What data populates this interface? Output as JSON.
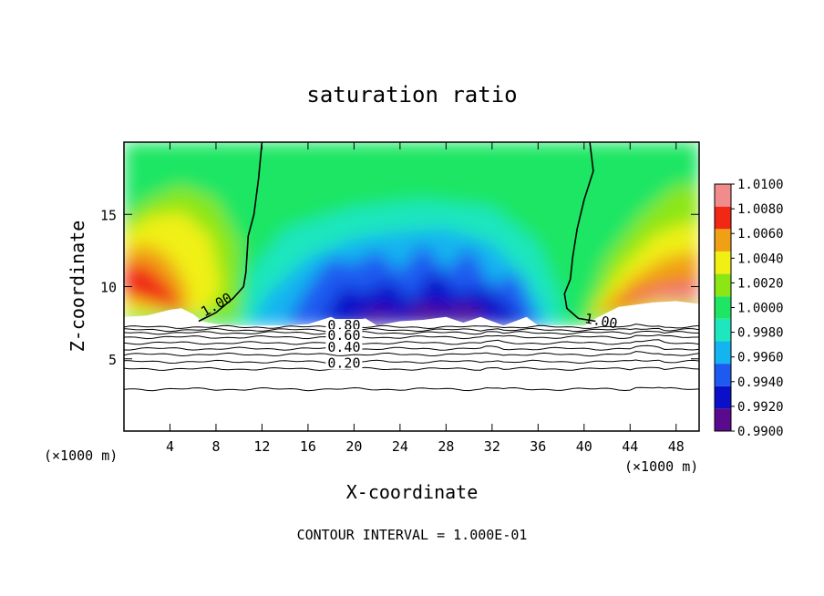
{
  "chart_data": {
    "type": "heatmap",
    "title": "saturation ratio",
    "xlabel": "X-coordinate",
    "ylabel": "Z-coordinate",
    "x_unit_left": "(×1000 m)",
    "x_unit_right": "(×1000 m)",
    "xlim": [
      0,
      50
    ],
    "ylim": [
      0,
      20
    ],
    "xticks": [
      4,
      8,
      12,
      16,
      20,
      24,
      28,
      32,
      36,
      40,
      44,
      48
    ],
    "yticks": [
      5,
      10,
      15
    ],
    "colorbar": {
      "levels": [
        0.99,
        0.992,
        0.994,
        0.996,
        0.998,
        1.0,
        1.002,
        1.004,
        1.006,
        1.008,
        1.01
      ],
      "labels": [
        "0.9900",
        "0.9920",
        "0.9940",
        "0.9960",
        "0.9980",
        "1.0000",
        "1.0020",
        "1.0040",
        "1.0060",
        "1.0080",
        "1.0100"
      ],
      "colors": [
        "#5a0a8c",
        "#0a10c8",
        "#1e5af0",
        "#14b4f0",
        "#1ee6be",
        "#1ee664",
        "#8ce614",
        "#f0f014",
        "#f0a014",
        "#f02814",
        "#f08c8c"
      ]
    },
    "contour_labels": [
      "1.00",
      "1.00",
      "0.80",
      "0.60",
      "0.40",
      "0.20"
    ],
    "footer": "CONTOUR INTERVAL = 1.000E-01"
  }
}
